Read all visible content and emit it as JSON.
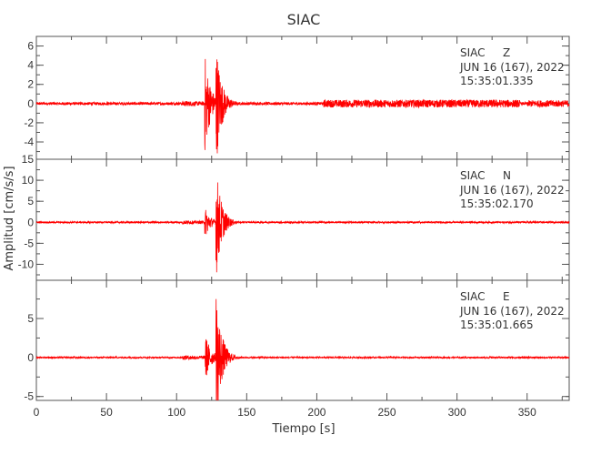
{
  "chart_data": {
    "type": "line",
    "title": "SIAC",
    "xlabel": "Tiempo [s]",
    "ylabel": "Amplitud [cm/s/s]",
    "xlim": [
      0,
      380
    ],
    "xticks": [
      0,
      50,
      100,
      150,
      200,
      250,
      300,
      350
    ],
    "line_color": "#ff0000",
    "grid": false,
    "panels": [
      {
        "station": "SIAC",
        "component": "Z",
        "date": "JUN 16 (167), 2022",
        "time": "15:35:01.335",
        "ylim": [
          -5.8,
          7
        ],
        "yticks": [
          -4,
          -2,
          0,
          2,
          4,
          6
        ],
        "noise_level": 0.15,
        "events": [
          {
            "t": 104,
            "amp": 0.3
          },
          {
            "t": 120,
            "amp": 5.5
          },
          {
            "t": 128,
            "amp": 6.8,
            "min": -5.5
          },
          {
            "t": 205,
            "amp": 0.4,
            "until": 345
          },
          {
            "t": 350,
            "amp": 0.35,
            "until": 380
          }
        ]
      },
      {
        "station": "SIAC",
        "component": "N",
        "date": "JUN 16 (167), 2022",
        "time": "15:35:02.170",
        "ylim": [
          -13.8,
          15
        ],
        "yticks": [
          -10,
          -5,
          0,
          5,
          10,
          15
        ],
        "noise_level": 0.2,
        "events": [
          {
            "t": 104,
            "amp": 0.5
          },
          {
            "t": 120,
            "amp": 4
          },
          {
            "t": 128,
            "amp": 14,
            "min": -13.5
          }
        ]
      },
      {
        "station": "SIAC",
        "component": "E",
        "date": "JUN 16 (167), 2022",
        "time": "15:35:01.665",
        "ylim": [
          -5.5,
          9.9
        ],
        "yticks": [
          -5,
          0,
          5
        ],
        "noise_level": 0.1,
        "events": [
          {
            "t": 104,
            "amp": 0.3
          },
          {
            "t": 120,
            "amp": 3.5
          },
          {
            "t": 128,
            "amp": 9,
            "min": -5.2
          }
        ]
      }
    ]
  }
}
